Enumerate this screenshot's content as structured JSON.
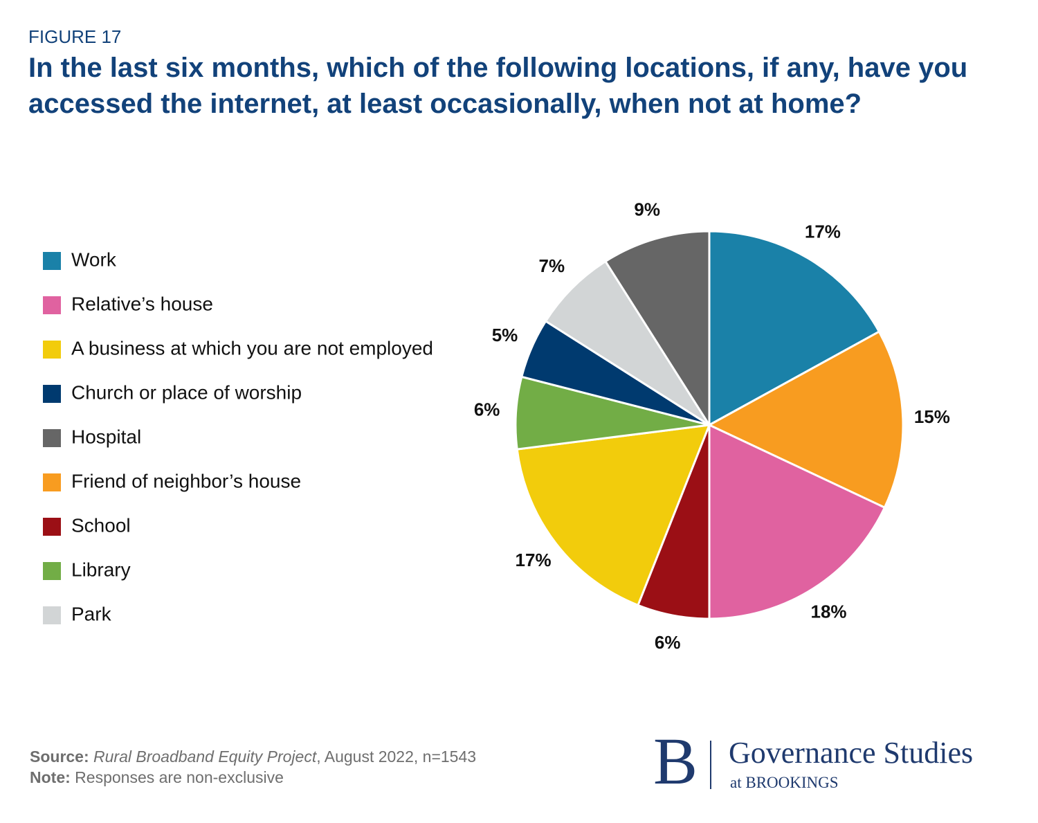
{
  "figure_label": "FIGURE 17",
  "chart_data": {
    "type": "pie",
    "title": "In the last six months, which of the following locations, if any, have you accessed the internet, at least occasionally, when not at home?",
    "categories": [
      "Work",
      "Friend of neighbor’s house",
      "Relative’s house",
      "School",
      "A business at which you are not employed",
      "Library",
      "Church or place of worship",
      "Park",
      "Hospital"
    ],
    "values": [
      17,
      15,
      18,
      6,
      17,
      6,
      5,
      7,
      9
    ],
    "value_labels": [
      "17%",
      "15%",
      "18%",
      "6%",
      "17%",
      "6%",
      "5%",
      "7%",
      "9%"
    ],
    "colors": [
      "#1a81a8",
      "#f89c20",
      "#e062a0",
      "#9b0f15",
      "#f2cc0c",
      "#72ad46",
      "#003a6f",
      "#d2d5d6",
      "#666666"
    ],
    "legend": "left"
  },
  "footer": {
    "source_label": "Source:",
    "source_title": "Rural Broadband Equity Project",
    "source_rest": ", August 2022, n=1543",
    "note_label": "Note:",
    "note_text": "Responses are non-exclusive"
  },
  "logo": {
    "letter": "B",
    "name": "Governance Studies",
    "sub": "at BROOKINGS"
  }
}
